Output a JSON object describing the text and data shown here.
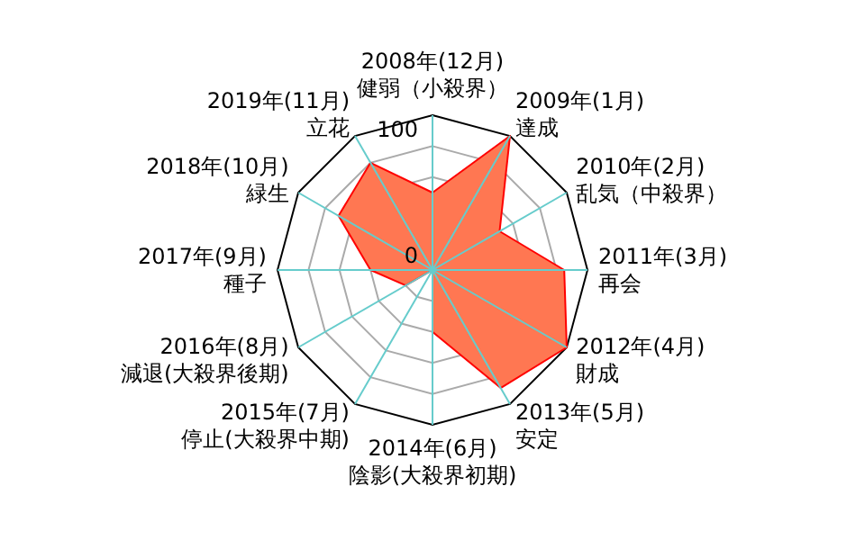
{
  "chart_data": {
    "type": "radar",
    "categories": [
      "2008年(12月)\n健弱（小殺界）",
      "2009年(1月)\n達成",
      "2010年(2月)\n乱気（中殺界）",
      "2011年(3月)\n再会",
      "2012年(4月)\n財成",
      "2013年(5月)\n安定",
      "2014年(6月)\n陰影(大殺界初期)",
      "2015年(7月)\n停止(大殺界中期)",
      "2016年(8月)\n減退(大殺界後期)",
      "2017年(9月)\n種子",
      "2018年(10月)\n緑生",
      "2019年(11月)\n立花"
    ],
    "series": [
      {
        "color": "#ff7752",
        "values": [
          50,
          100,
          50,
          85,
          100,
          88,
          40,
          0,
          20,
          40,
          70,
          80
        ]
      }
    ],
    "ylim": [
      0,
      100
    ],
    "yticks": [
      0,
      100
    ],
    "grid": true
  }
}
